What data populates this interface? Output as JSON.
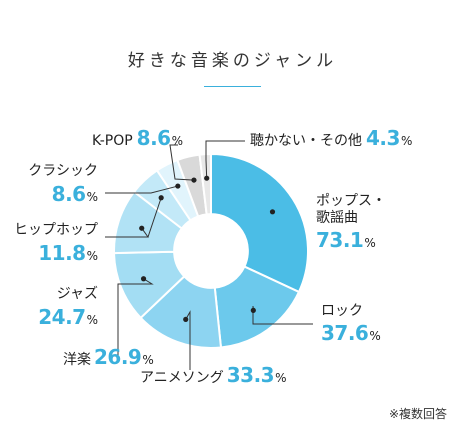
{
  "title": "好きな音楽のジャンル",
  "note": "※複数回答",
  "unit": "%",
  "colors": {
    "accent": "#3ab0dc"
  },
  "chart_data": {
    "type": "pie",
    "title": "好きな音楽のジャンル",
    "categories": [
      "ポップス・歌謡曲",
      "ロック",
      "アニメソング",
      "洋楽",
      "ジャズ",
      "ヒップホップ",
      "クラシック",
      "K-POP",
      "聴かない・その他"
    ],
    "values": [
      73.1,
      37.6,
      33.3,
      26.9,
      24.7,
      11.8,
      8.6,
      8.6,
      4.3
    ],
    "series": [
      {
        "values": [
          73.1,
          37.6,
          33.3,
          26.9,
          24.7,
          11.8,
          8.6,
          8.6,
          4.3
        ]
      }
    ],
    "colors": [
      "#4bbde6",
      "#6cc9ec",
      "#8dd4f1",
      "#a3ddf3",
      "#b1e2f5",
      "#c3e9f8",
      "#e1f4fc",
      "#d9d9d9",
      "#e8e8e8"
    ],
    "inner_radius_ratio": 0.38,
    "legend": "none",
    "labels": [
      {
        "category_lines": [
          "ポップス・",
          "歌謡曲"
        ],
        "value": "73.1"
      },
      {
        "category_lines": [
          "ロック"
        ],
        "value": "37.6"
      },
      {
        "category_lines": [
          "アニメソング"
        ],
        "value": "33.3"
      },
      {
        "category_lines": [
          "洋楽"
        ],
        "value": "26.9"
      },
      {
        "category_lines": [
          "ジャズ"
        ],
        "value": "24.7"
      },
      {
        "category_lines": [
          "ヒップホップ"
        ],
        "value": "11.8"
      },
      {
        "category_lines": [
          "クラシック"
        ],
        "value": "8.6"
      },
      {
        "category_lines": [
          "K-POP"
        ],
        "value": "8.6"
      },
      {
        "category_lines": [
          "聴かない・その他"
        ],
        "value": "4.3"
      }
    ]
  }
}
